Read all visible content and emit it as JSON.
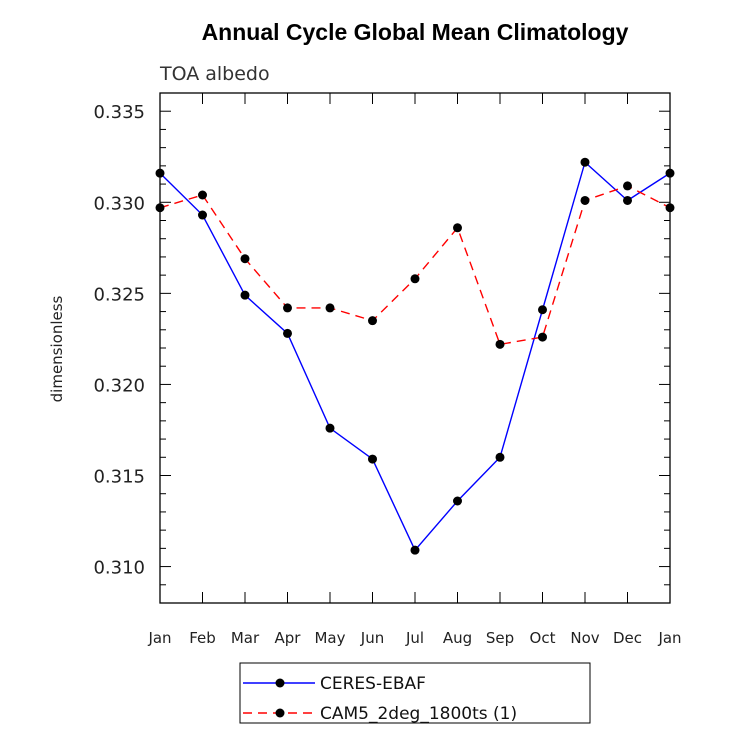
{
  "chart_data": {
    "type": "line",
    "title": "Annual Cycle Global Mean Climatology",
    "subtitle": "TOA albedo",
    "xlabel": "",
    "ylabel": "dimensionless",
    "categories": [
      "Jan",
      "Feb",
      "Mar",
      "Apr",
      "May",
      "Jun",
      "Jul",
      "Aug",
      "Sep",
      "Oct",
      "Nov",
      "Dec",
      "Jan"
    ],
    "ylim": [
      0.308,
      0.336
    ],
    "yticks": [
      0.31,
      0.315,
      0.32,
      0.325,
      0.33,
      0.335
    ],
    "ytick_labels": [
      "0.310",
      "0.315",
      "0.320",
      "0.325",
      "0.330",
      "0.335"
    ],
    "series": [
      {
        "name": "CERES-EBAF",
        "color": "#0000ff",
        "dash": "solid",
        "values": [
          0.3316,
          0.3293,
          0.3249,
          0.3228,
          0.3176,
          0.3159,
          0.3109,
          0.3136,
          0.316,
          0.3241,
          0.3322,
          0.3301,
          0.3316
        ]
      },
      {
        "name": "CAM5_2deg_1800ts (1)",
        "color": "#ff0000",
        "dash": "dashed",
        "values": [
          0.3297,
          0.3304,
          0.3269,
          0.3242,
          0.3242,
          0.3235,
          0.3258,
          0.3286,
          0.3222,
          0.3226,
          0.3301,
          0.3309,
          0.3297
        ]
      }
    ],
    "marker_color": "#000000",
    "legend_position": "bottom-center",
    "grid": false
  }
}
